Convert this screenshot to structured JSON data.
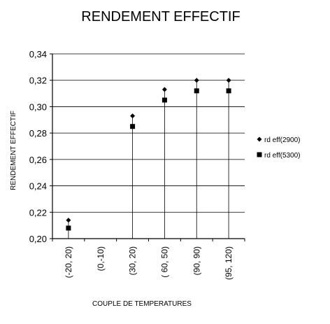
{
  "chart_data": {
    "type": "scatter",
    "title": "RENDEMENT EFFECTIF",
    "xlabel": "COUPLE DE TEMPERATURES",
    "ylabel": "RENDEMENT EFFECTIF",
    "categories": [
      "(-20, 20)",
      "(0,-10)",
      "(30, 20)",
      "( 60, 50)",
      "(90, 90)",
      "(95, 120)"
    ],
    "ylim": [
      0.2,
      0.34
    ],
    "yticks": [
      "0,20",
      "0,22",
      "0,24",
      "0,26",
      "0,28",
      "0,30",
      "0,32",
      "0,34"
    ],
    "grid": "horizontal",
    "legend_position": "right",
    "series": [
      {
        "name": "rd eff(2900)",
        "marker": "diamond",
        "values": [
          0.214,
          null,
          0.293,
          0.313,
          0.32,
          0.32
        ]
      },
      {
        "name": "rd eff(5300)",
        "marker": "square",
        "values": [
          0.208,
          null,
          0.285,
          0.305,
          0.312,
          0.312
        ]
      }
    ],
    "colors": {
      "marker": "#000000",
      "grid": "#000000"
    }
  }
}
